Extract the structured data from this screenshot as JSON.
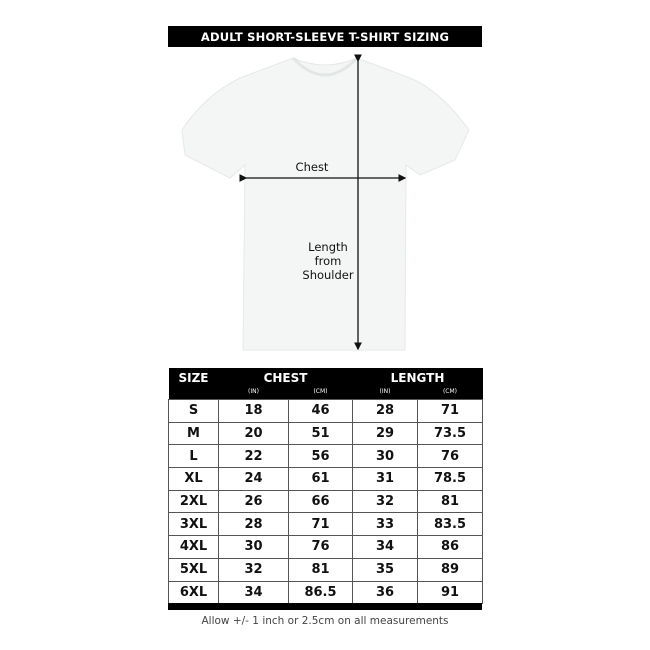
{
  "title": "ADULT SHORT-SLEEVE T-SHIRT SIZING",
  "diagram": {
    "chest_label": "Chest",
    "length_label_lines": [
      "Length",
      "from",
      "Shoulder"
    ]
  },
  "table": {
    "headers": {
      "size": "SIZE",
      "chest": "CHEST",
      "length": "LENGTH",
      "in": "(IN)",
      "cm": "(CM)"
    },
    "rows": [
      [
        "S",
        "18",
        "46",
        "28",
        "71"
      ],
      [
        "M",
        "20",
        "51",
        "29",
        "73.5"
      ],
      [
        "L",
        "22",
        "56",
        "30",
        "76"
      ],
      [
        "XL",
        "24",
        "61",
        "31",
        "78.5"
      ],
      [
        "2XL",
        "26",
        "66",
        "32",
        "81"
      ],
      [
        "3XL",
        "28",
        "71",
        "33",
        "83.5"
      ],
      [
        "4XL",
        "30",
        "76",
        "34",
        "86"
      ],
      [
        "5XL",
        "32",
        "81",
        "35",
        "89"
      ],
      [
        "6XL",
        "34",
        "86.5",
        "36",
        "91"
      ]
    ]
  },
  "note": "Allow +/- 1 inch or 2.5cm on all measurements"
}
